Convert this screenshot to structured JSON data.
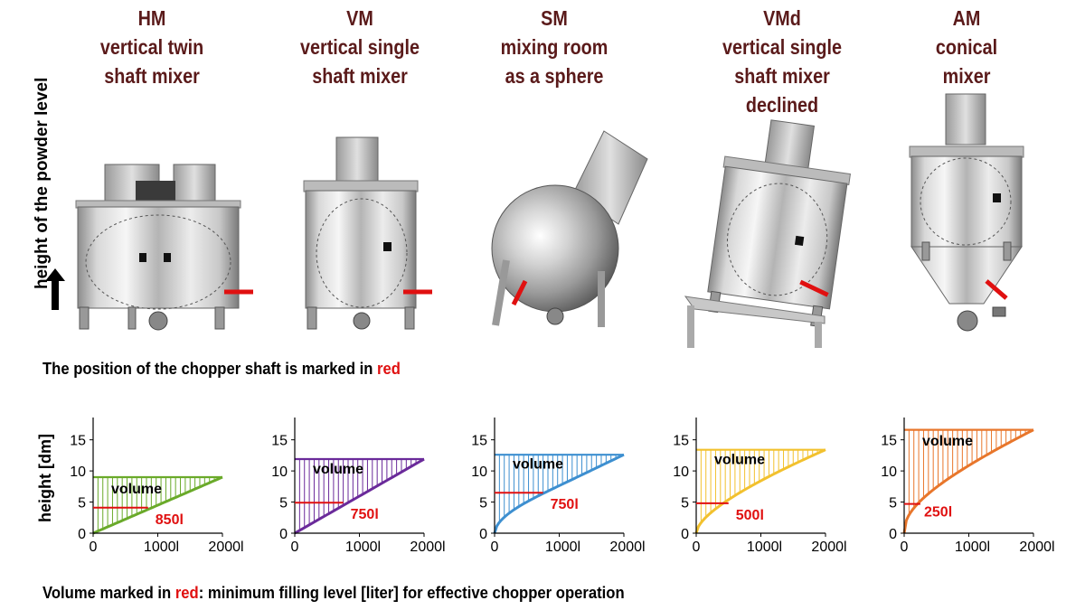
{
  "mixers": [
    {
      "code": "HM",
      "lines": [
        "vertical twin",
        "shaft mixer"
      ]
    },
    {
      "code": "VM",
      "lines": [
        "vertical single",
        "shaft mixer"
      ]
    },
    {
      "code": "SM",
      "lines": [
        "mixing room",
        "as a sphere"
      ]
    },
    {
      "code": "VMd",
      "lines": [
        "vertical single",
        "shaft mixer",
        "declined"
      ]
    },
    {
      "code": "AM",
      "lines": [
        "conical",
        "mixer"
      ]
    }
  ],
  "side_label": "height of the powder level",
  "caption_position": {
    "text": "The position of the chopper shaft is marked in ",
    "highlight": "red"
  },
  "caption_volume": {
    "highlight_before": "Volume marked in ",
    "highlight": "red",
    "after": ": minimum filling level [liter] for effective chopper operation"
  },
  "y_axis_label": "height [dm]",
  "volume_word": "volume",
  "colors": {
    "title": "#5a1a1a",
    "marker": "#e01010"
  },
  "chart_data": [
    {
      "type": "area",
      "title": "HM",
      "xlim": [
        0,
        2000
      ],
      "ylim": [
        0,
        18
      ],
      "xticks": [
        "0",
        "1000l",
        "2000l"
      ],
      "yticks": [
        "0",
        "5",
        "10",
        "15"
      ],
      "color": "#6aaa2a",
      "max_height": 9,
      "curve": "linear",
      "min_fill_volume_l": 850,
      "min_fill_height_dm": 4.1,
      "min_fill_label": "850l"
    },
    {
      "type": "area",
      "title": "VM",
      "xlim": [
        0,
        2000
      ],
      "ylim": [
        0,
        18
      ],
      "xticks": [
        "0",
        "1000l",
        "2000l"
      ],
      "yticks": [
        "0",
        "5",
        "10",
        "15"
      ],
      "color": "#6a2a9a",
      "max_height": 11.9,
      "curve": "linear",
      "min_fill_volume_l": 750,
      "min_fill_height_dm": 4.9,
      "min_fill_label": "750l"
    },
    {
      "type": "area",
      "title": "SM",
      "xlim": [
        0,
        2000
      ],
      "ylim": [
        0,
        18
      ],
      "xticks": [
        "0",
        "1000l",
        "2000l"
      ],
      "yticks": [
        "0",
        "5",
        "10",
        "15"
      ],
      "color": "#3d8fd0",
      "max_height": 12.6,
      "curve": "sphere",
      "min_fill_volume_l": 750,
      "min_fill_height_dm": 6.5,
      "min_fill_label": "750l"
    },
    {
      "type": "area",
      "title": "VMd",
      "xlim": [
        0,
        2000
      ],
      "ylim": [
        0,
        18
      ],
      "xticks": [
        "0",
        "1000l",
        "2000l"
      ],
      "yticks": [
        "0",
        "5",
        "10",
        "15"
      ],
      "color": "#f2c12e",
      "max_height": 13.4,
      "curve": "declined",
      "min_fill_volume_l": 500,
      "min_fill_height_dm": 4.8,
      "min_fill_label": "500l"
    },
    {
      "type": "area",
      "title": "AM",
      "xlim": [
        0,
        2000
      ],
      "ylim": [
        0,
        18
      ],
      "xticks": [
        "0",
        "1000l",
        "2000l"
      ],
      "yticks": [
        "0",
        "5",
        "10",
        "15"
      ],
      "color": "#e8762b",
      "max_height": 16.6,
      "curve": "cone",
      "min_fill_volume_l": 250,
      "min_fill_height_dm": 4.7,
      "min_fill_label": "250l"
    }
  ]
}
